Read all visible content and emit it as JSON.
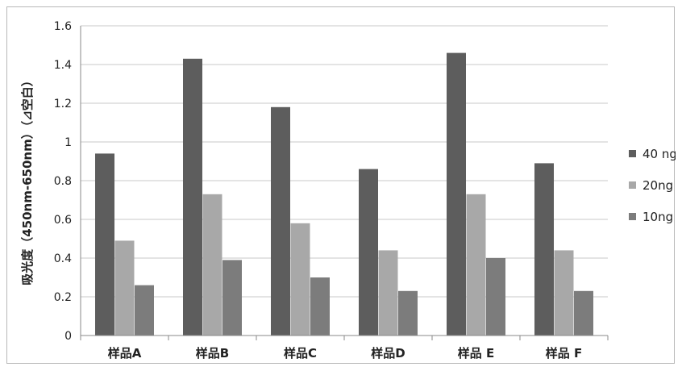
{
  "chart_data": {
    "type": "bar",
    "title": "",
    "xlabel": "",
    "ylabel": "吸光度（450nm-650nm）（⊿空白）",
    "ylim": [
      0,
      1.6
    ],
    "yticks": [
      "0",
      "0.2",
      "0.4",
      "0.6",
      "0.8",
      "1",
      "1.2",
      "1.4",
      "1.6"
    ],
    "grid": true,
    "legend_position": "right",
    "categories": [
      "样品A",
      "样品B",
      "样品C",
      "样品D",
      "样品 E",
      "样品 F"
    ],
    "series": [
      {
        "name": "40 ng",
        "color": "#5d5d5d",
        "values": [
          0.94,
          1.43,
          1.18,
          0.86,
          1.46,
          0.89
        ]
      },
      {
        "name": "20ng",
        "color": "#a8a8a8",
        "values": [
          0.49,
          0.73,
          0.58,
          0.44,
          0.73,
          0.44
        ]
      },
      {
        "name": "10ng",
        "color": "#7c7c7c",
        "values": [
          0.26,
          0.39,
          0.3,
          0.23,
          0.4,
          0.23
        ]
      }
    ]
  }
}
